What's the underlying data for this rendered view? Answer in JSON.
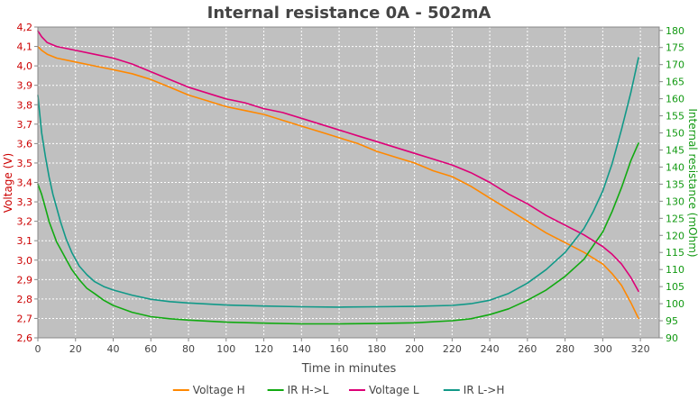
{
  "chart_data": {
    "type": "line",
    "title": "Internal resistance  0A - 502mA",
    "xlabel": "Time in minutes",
    "ylabel_left": "Voltage (V)",
    "ylabel_right": "Internal resistance (mOhm)",
    "xlim": [
      0,
      330
    ],
    "ylim_left": [
      2.6,
      4.2
    ],
    "ylim_right": [
      90,
      181
    ],
    "x_ticks": [
      "0",
      "20",
      "40",
      "60",
      "80",
      "100",
      "120",
      "140",
      "160",
      "180",
      "200",
      "220",
      "240",
      "260",
      "280",
      "300",
      "320"
    ],
    "y_ticks_left": [
      "2,6",
      "2,7",
      "2,8",
      "2,9",
      "3,0",
      "3,1",
      "3,2",
      "3,3",
      "3,4",
      "3,5",
      "3,6",
      "3,7",
      "3,8",
      "3,9",
      "4,0",
      "4,1",
      "4,2"
    ],
    "y_ticks_right": [
      "90",
      "95",
      "100",
      "105",
      "110",
      "115",
      "120",
      "125",
      "130",
      "135",
      "140",
      "145",
      "150",
      "155",
      "160",
      "165",
      "170",
      "175",
      "180"
    ],
    "grid": true,
    "legend_position": "bottom",
    "series": [
      {
        "name": "Voltage H",
        "axis": "left",
        "color": "#ff8800",
        "x": [
          0,
          2,
          5,
          10,
          20,
          30,
          40,
          50,
          60,
          70,
          80,
          90,
          100,
          110,
          120,
          130,
          140,
          150,
          160,
          170,
          180,
          190,
          200,
          210,
          220,
          230,
          240,
          250,
          260,
          270,
          280,
          290,
          295,
          300,
          305,
          310,
          315,
          319
        ],
        "y": [
          4.1,
          4.08,
          4.06,
          4.04,
          4.02,
          4.0,
          3.98,
          3.96,
          3.93,
          3.89,
          3.85,
          3.82,
          3.79,
          3.77,
          3.75,
          3.72,
          3.69,
          3.66,
          3.63,
          3.6,
          3.56,
          3.53,
          3.5,
          3.46,
          3.43,
          3.38,
          3.32,
          3.26,
          3.2,
          3.14,
          3.09,
          3.04,
          3.01,
          2.98,
          2.93,
          2.87,
          2.78,
          2.7
        ]
      },
      {
        "name": "IR H->L",
        "axis": "right",
        "color": "#11aa11",
        "x": [
          0,
          2,
          4,
          6,
          8,
          10,
          12,
          15,
          18,
          22,
          26,
          30,
          35,
          40,
          50,
          60,
          70,
          80,
          100,
          120,
          140,
          160,
          180,
          200,
          220,
          230,
          240,
          250,
          260,
          270,
          280,
          290,
          295,
          300,
          305,
          310,
          315,
          319
        ],
        "y": [
          135,
          132,
          128,
          124,
          121,
          118,
          116,
          113,
          110,
          107,
          104.5,
          103,
          101,
          99.5,
          97.5,
          96.2,
          95.6,
          95.2,
          94.6,
          94.3,
          94.1,
          94.1,
          94.2,
          94.4,
          95,
          95.6,
          96.8,
          98.5,
          101,
          104,
          108,
          113,
          117,
          121,
          127,
          134,
          142,
          147
        ]
      },
      {
        "name": "Voltage L",
        "axis": "left",
        "color": "#dd0077",
        "x": [
          0,
          2,
          5,
          10,
          20,
          30,
          40,
          50,
          60,
          70,
          80,
          90,
          100,
          110,
          120,
          130,
          140,
          150,
          160,
          170,
          180,
          190,
          200,
          210,
          220,
          230,
          240,
          250,
          260,
          270,
          280,
          290,
          300,
          305,
          310,
          315,
          319
        ],
        "y": [
          4.18,
          4.15,
          4.12,
          4.1,
          4.08,
          4.06,
          4.04,
          4.01,
          3.97,
          3.93,
          3.89,
          3.86,
          3.83,
          3.81,
          3.78,
          3.76,
          3.73,
          3.7,
          3.67,
          3.64,
          3.61,
          3.58,
          3.55,
          3.52,
          3.49,
          3.45,
          3.4,
          3.34,
          3.29,
          3.23,
          3.18,
          3.13,
          3.07,
          3.03,
          2.98,
          2.91,
          2.84
        ]
      },
      {
        "name": "IR L->H",
        "axis": "right",
        "color": "#119988",
        "x": [
          0,
          2,
          4,
          6,
          8,
          10,
          12,
          15,
          18,
          22,
          26,
          30,
          35,
          40,
          50,
          60,
          70,
          80,
          100,
          120,
          140,
          160,
          180,
          200,
          220,
          230,
          240,
          250,
          260,
          270,
          280,
          290,
          295,
          300,
          305,
          310,
          315,
          319
        ],
        "y": [
          161,
          150,
          143,
          137,
          132,
          128,
          124,
          119,
          115,
          111,
          108.5,
          106.5,
          105,
          104,
          102.5,
          101.3,
          100.6,
          100.2,
          99.6,
          99.3,
          99.1,
          99,
          99.1,
          99.2,
          99.5,
          100,
          101,
          103,
          106,
          110,
          115,
          122,
          127,
          133,
          141,
          151,
          162,
          172
        ]
      }
    ]
  }
}
